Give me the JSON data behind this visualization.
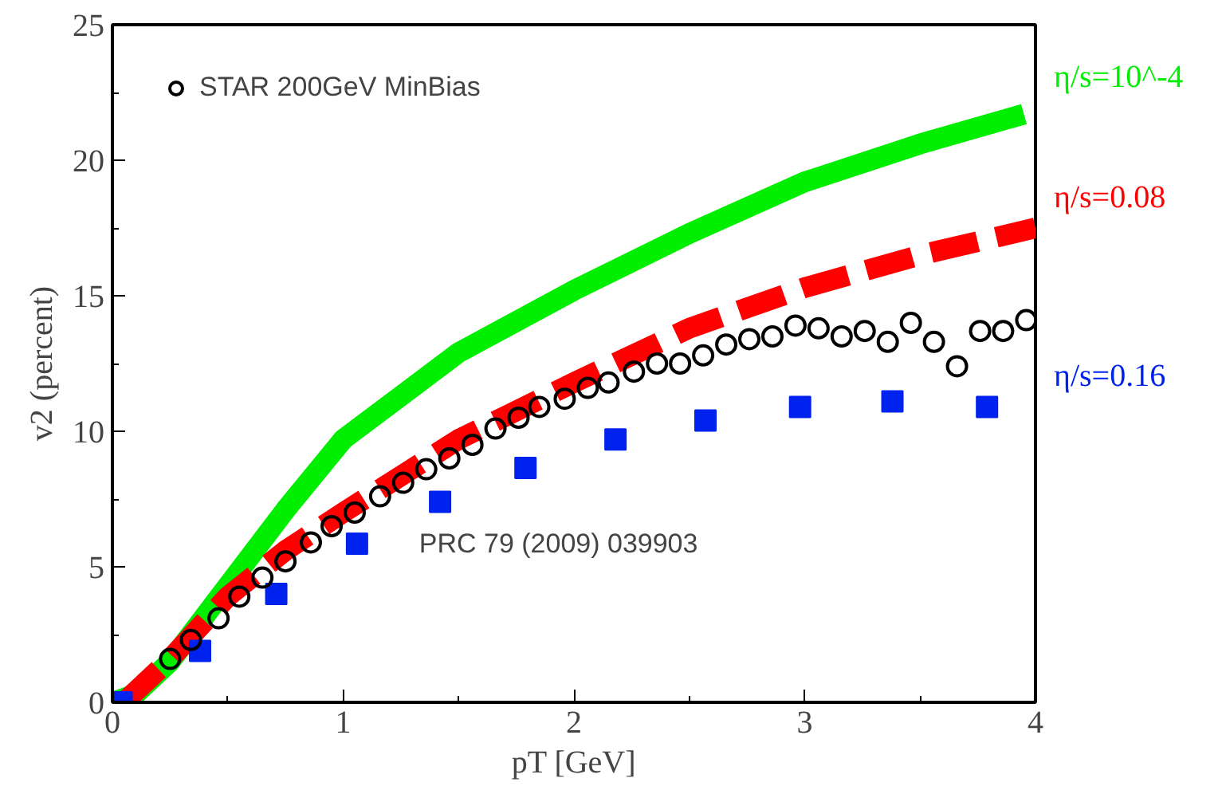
{
  "chart_data": {
    "type": "line",
    "xlabel": "pT [GeV]",
    "ylabel": "v2 (percent)",
    "xlim": [
      0,
      4
    ],
    "ylim": [
      0,
      25
    ],
    "xticks": [
      0,
      1,
      2,
      3,
      4
    ],
    "yticks": [
      0,
      5,
      10,
      15,
      20,
      25
    ],
    "legend": "top left",
    "grid": false,
    "annotations": [
      "PRC 79 (2009) 039903"
    ],
    "series": [
      {
        "name": "STAR 200GeV MinBias",
        "type": "scatter",
        "marker": "circle",
        "color": "#000000",
        "x": [
          0.25,
          0.34,
          0.46,
          0.55,
          0.65,
          0.75,
          0.86,
          0.95,
          1.05,
          1.16,
          1.26,
          1.36,
          1.46,
          1.56,
          1.66,
          1.76,
          1.85,
          1.96,
          2.06,
          2.15,
          2.26,
          2.36,
          2.46,
          2.56,
          2.66,
          2.76,
          2.86,
          2.96,
          3.06,
          3.16,
          3.26,
          3.36,
          3.46,
          3.56,
          3.66,
          3.76,
          3.86,
          3.96
        ],
        "values": [
          1.6,
          2.3,
          3.1,
          3.9,
          4.6,
          5.2,
          5.9,
          6.5,
          7.0,
          7.6,
          8.1,
          8.6,
          9.0,
          9.5,
          10.1,
          10.5,
          10.9,
          11.2,
          11.6,
          11.8,
          12.2,
          12.5,
          12.5,
          12.8,
          13.2,
          13.4,
          13.5,
          13.9,
          13.8,
          13.5,
          13.7,
          13.3,
          14.0,
          13.3,
          12.4,
          13.7,
          13.7,
          14.1
        ]
      },
      {
        "name": "η/s=10^-4",
        "line_style": "solid",
        "color": "#00ee00",
        "x": [
          0,
          0.1,
          0.25,
          0.5,
          0.75,
          1,
          1.5,
          2,
          2.5,
          3,
          3.5,
          3.95
        ],
        "values": [
          0,
          0.3,
          1.5,
          4.3,
          7.1,
          9.7,
          12.9,
          15.2,
          17.3,
          19.2,
          20.6,
          21.7
        ]
      },
      {
        "name": "η/s=0.08",
        "line_style": "dashed",
        "color": "#ff0000",
        "x": [
          0.05,
          0.25,
          0.5,
          0.75,
          1,
          1.5,
          2,
          2.5,
          3,
          3.5,
          4
        ],
        "values": [
          0,
          1.6,
          3.9,
          5.6,
          7.0,
          9.7,
          11.8,
          13.8,
          15.3,
          16.5,
          17.5
        ]
      },
      {
        "name": "η/s=0.16",
        "type": "scatter",
        "marker": "square",
        "color": "#0022ee",
        "x": [
          0.04,
          0.38,
          0.71,
          1.06,
          1.42,
          1.79,
          2.18,
          2.57,
          2.98,
          3.38,
          3.79
        ],
        "values": [
          0,
          1.9,
          4.0,
          5.85,
          7.4,
          8.65,
          9.7,
          10.4,
          10.9,
          11.1,
          10.9
        ]
      }
    ]
  }
}
